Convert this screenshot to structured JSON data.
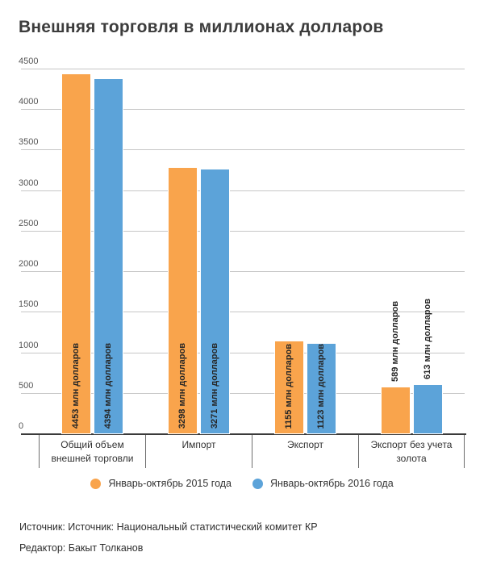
{
  "title": "Внешняя торговля в миллионах долларов",
  "chart_data": {
    "type": "bar",
    "title": "Внешняя торговля в миллионах долларов",
    "categories": [
      "Общий объем внешней торговли",
      "Импорт",
      "Экспорт",
      "Экспорт без учета золота"
    ],
    "series": [
      {
        "name": "Январь-октябрь 2015 года",
        "color": "#F9A44C",
        "values": [
          4453,
          3298,
          1155,
          589
        ]
      },
      {
        "name": "Январь-октябрь 2016 года",
        "color": "#5CA3D9",
        "values": [
          4394,
          3271,
          1123,
          613
        ]
      }
    ],
    "value_label_suffix": " млн долларов",
    "xlabel": "",
    "ylabel": "",
    "ylim": [
      0,
      4500
    ],
    "ytick_step": 500,
    "grid": true,
    "grid_color": "#c6c6c6",
    "axis_color": "#3b3b3b",
    "legend_position": "bottom"
  },
  "footer": {
    "source": "Источник: Источник: Национальный статистический комитет КР",
    "editor": "Редактор: Бакыт Толканов"
  }
}
